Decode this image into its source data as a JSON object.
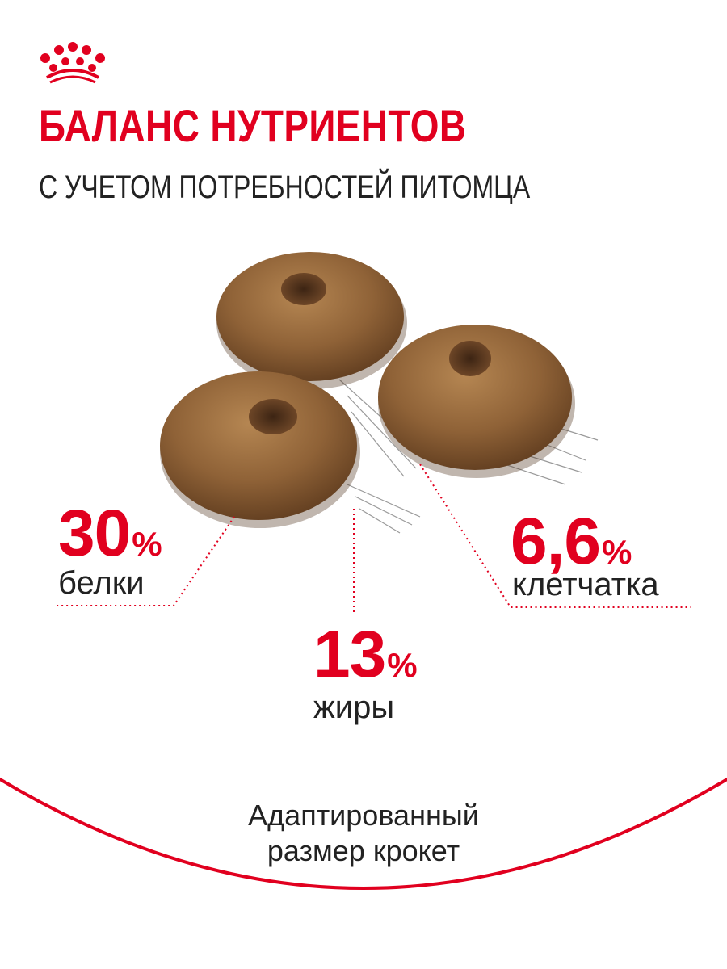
{
  "brand": {
    "logo_icon": "crown-icon",
    "color": "#e1001f"
  },
  "header": {
    "title": "БАЛАНС НУТРИЕНТОВ",
    "subtitle": "С УЧЕТОМ ПОТРЕБНОСТЕЙ ПИТОМЦА"
  },
  "kibble_image": {
    "icon": "kibble-image"
  },
  "nutrients": [
    {
      "value": "30",
      "unit": "%",
      "label": "белки"
    },
    {
      "value": "13",
      "unit": "%",
      "label": "жиры"
    },
    {
      "value": "6,6",
      "unit": "%",
      "label": "клетчатка"
    }
  ],
  "footer": {
    "line1": "Адаптированный",
    "line2": "размер крокет"
  }
}
